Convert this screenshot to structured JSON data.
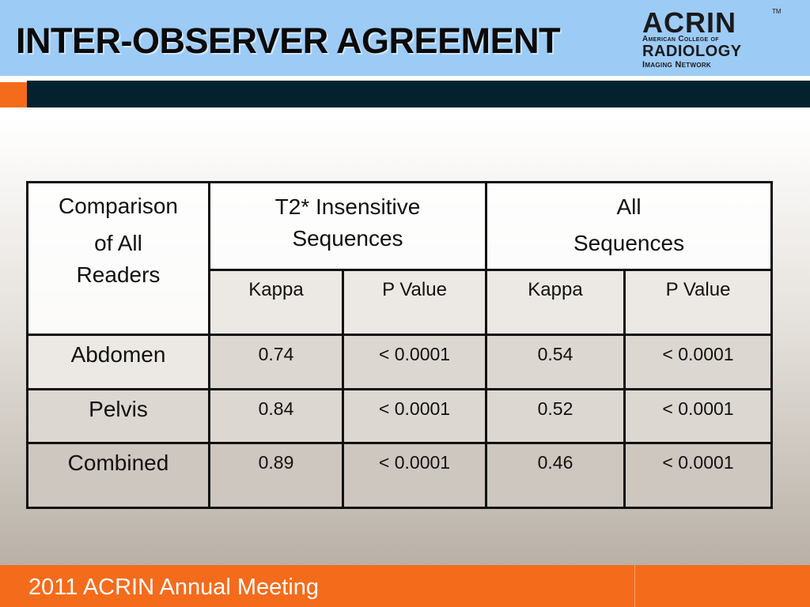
{
  "header": {
    "title": "INTER-OBSERVER AGREEMENT",
    "logo": {
      "main": "ACRIN",
      "tm": "TM",
      "line1": "American College of",
      "line2": "RADIOLOGY",
      "line3": "Imaging Network"
    }
  },
  "table": {
    "corner_lines": [
      "Comparison",
      "of All",
      "Readers"
    ],
    "group1": "T2* Insensitive Sequences",
    "group2_lines": [
      "All",
      "Sequences"
    ],
    "subheaders": [
      "Kappa",
      "P Value",
      "Kappa",
      "P Value"
    ],
    "rows": [
      {
        "label": "Abdomen",
        "values": [
          "0.74",
          "< 0.0001",
          "0.54",
          "< 0.0001"
        ]
      },
      {
        "label": "Pelvis",
        "values": [
          "0.84",
          "< 0.0001",
          "0.52",
          "< 0.0001"
        ]
      },
      {
        "label": "Combined",
        "values": [
          "0.89",
          "< 0.0001",
          "0.46",
          "< 0.0001"
        ]
      }
    ]
  },
  "footer": {
    "text": "2011 ACRIN Annual Meeting"
  },
  "colors": {
    "header_bg": "#9ccbf6",
    "accent_orange": "#f46b1b",
    "accent_dark": "#04222e"
  }
}
